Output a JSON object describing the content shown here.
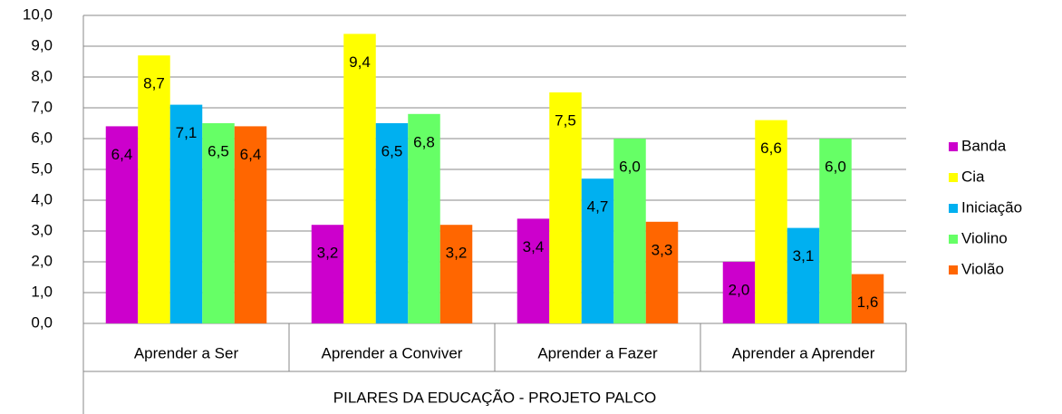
{
  "chart_data": {
    "type": "bar",
    "categories": [
      "Aprender a Ser",
      "Aprender a Conviver",
      "Aprender a Fazer",
      "Aprender a Aprender"
    ],
    "xlabel": "PILARES DA EDUCAÇÃO - PROJETO PALCO",
    "series": [
      {
        "name": "Banda",
        "color": "#cc00cc",
        "values": [
          6.4,
          3.2,
          3.4,
          2.0
        ],
        "value_labels": [
          "6,4",
          "3,2",
          "3,4",
          "2,0"
        ]
      },
      {
        "name": "Cia",
        "color": "#ffff00",
        "values": [
          8.7,
          9.4,
          7.5,
          6.6
        ],
        "value_labels": [
          "8,7",
          "9,4",
          "7,5",
          "6,6"
        ]
      },
      {
        "name": "Iniciação",
        "color": "#00b0f0",
        "values": [
          7.1,
          6.5,
          4.7,
          3.1
        ],
        "value_labels": [
          "7,1",
          "6,5",
          "4,7",
          "3,1"
        ]
      },
      {
        "name": "Violino",
        "color": "#66ff66",
        "values": [
          6.5,
          6.8,
          6.0,
          6.0
        ],
        "value_labels": [
          "6,5",
          "6,8",
          "6,0",
          "6,0"
        ]
      },
      {
        "name": "Violão",
        "color": "#ff6600",
        "values": [
          6.4,
          3.2,
          3.3,
          1.6
        ],
        "value_labels": [
          "6,4",
          "3,2",
          "3,3",
          "1,6"
        ]
      }
    ],
    "ylim": [
      0,
      10
    ],
    "yticks": [
      {
        "value": 0,
        "label": "0,0"
      },
      {
        "value": 1,
        "label": "1,0"
      },
      {
        "value": 2,
        "label": "2,0"
      },
      {
        "value": 3,
        "label": "3,0"
      },
      {
        "value": 4,
        "label": "4,0"
      },
      {
        "value": 5,
        "label": "5,0"
      },
      {
        "value": 6,
        "label": "6,0"
      },
      {
        "value": 7,
        "label": "7,0"
      },
      {
        "value": 8,
        "label": "8,0"
      },
      {
        "value": 9,
        "label": "9,0"
      },
      {
        "value": 10,
        "label": "10,0"
      }
    ],
    "grid": true,
    "legend": "right"
  }
}
